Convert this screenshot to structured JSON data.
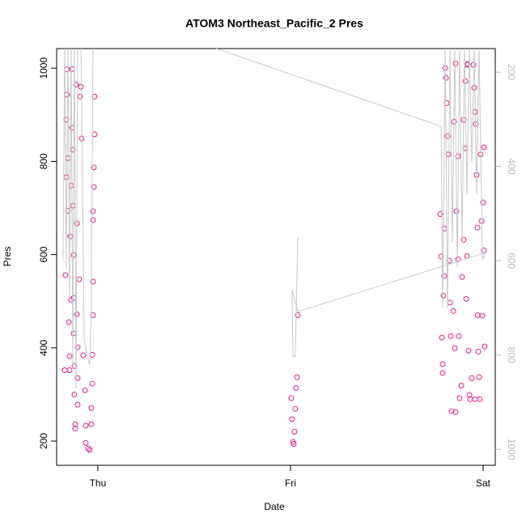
{
  "chart_data": {
    "type": "scatter",
    "title": "ATOM3 Northeast_Pacific_2 Pres",
    "x_label": "Date",
    "y_label": "Pres",
    "xlim": [
      -0.214,
      2.063
    ],
    "xticks": [
      {
        "value": 0,
        "label": "Thu"
      },
      {
        "value": 1,
        "label": "Fri"
      },
      {
        "value": 2,
        "label": "Sat"
      }
    ],
    "ylim": [
      148,
      1042
    ],
    "yticks": [
      200,
      400,
      600,
      800,
      1000
    ],
    "y2lim": [
      1034,
      150
    ],
    "y2ticks": [
      200,
      400,
      600,
      800,
      1000
    ],
    "series": [
      {
        "color": "#e0208c",
        "style": "points",
        "x": [
          -0.172,
          -0.168,
          -0.164,
          -0.164,
          -0.16,
          -0.16,
          -0.155,
          -0.155,
          -0.151,
          -0.147,
          -0.147,
          -0.143,
          -0.139,
          -0.139,
          -0.134,
          -0.134,
          -0.13,
          -0.13,
          -0.126,
          -0.126,
          -0.126,
          -0.122,
          -0.122,
          -0.118,
          -0.118,
          -0.113,
          -0.109,
          -0.109,
          -0.105,
          -0.105,
          -0.105,
          -0.097,
          -0.092,
          -0.088,
          -0.084,
          -0.076,
          -0.067,
          -0.063,
          -0.063,
          -0.05,
          -0.042,
          -0.034,
          -0.034,
          -0.029,
          -0.029,
          -0.025,
          -0.025,
          -0.025,
          -0.025,
          -0.021,
          -0.021,
          -0.017,
          -0.017,
          1.004,
          1.008,
          1.013,
          1.017,
          1.021,
          1.025,
          1.029,
          1.034,
          1.038,
          1.777,
          1.782,
          1.786,
          1.79,
          1.79,
          1.798,
          1.798,
          1.803,
          1.807,
          1.811,
          1.815,
          1.819,
          1.824,
          1.828,
          1.832,
          1.836,
          1.845,
          1.849,
          1.853,
          1.857,
          1.861,
          1.87,
          1.87,
          1.874,
          1.878,
          1.887,
          1.891,
          1.899,
          1.899,
          1.908,
          1.908,
          1.912,
          1.916,
          1.92,
          1.924,
          1.929,
          1.933,
          1.941,
          1.95,
          1.954,
          1.958,
          1.962,
          1.966,
          1.971,
          1.971,
          1.975,
          1.979,
          1.983,
          1.987,
          1.992,
          1.996,
          2.0,
          2.004,
          2.004,
          2.008,
          1.958,
          1.857,
          1.794,
          1.916
        ],
        "values": [
          352,
          556,
          766,
          889,
          943,
          997,
          807,
          694,
          455,
          382,
          352,
          639,
          503,
          748,
          872,
          998,
          825,
          705,
          599,
          507,
          431,
          361,
          300,
          236,
          227,
          965,
          667,
          472,
          401,
          335,
          278,
          547,
          939,
          960,
          849,
          384,
          309,
          233,
          196,
          184,
          181,
          271,
          236,
          385,
          323,
          470,
          542,
          674,
          693,
          745,
          787,
          858,
          939,
          292,
          247,
          198,
          194,
          220,
          269,
          314,
          337,
          470,
          687,
          596,
          422,
          365,
          346,
          656,
          554,
          1000,
          979,
          925,
          854,
          815,
          587,
          497,
          425,
          264,
          479,
          885,
          399,
          1010,
          693,
          811,
          590,
          425,
          292,
          319,
          552,
          889,
          632,
          972,
          828,
          505,
          597,
          1009,
          394,
          299,
          290,
          335,
          1007,
          958,
          906,
          880,
          771,
          658,
          470,
          392,
          337,
          290,
          815,
          672,
          469,
          712,
          830,
          609,
          403,
          290,
          262,
          512,
          1007
        ]
      },
      {
        "color": "#c8c8c8",
        "style": "line",
        "axis": "y2",
        "x": [
          -0.181,
          -0.172,
          -0.164,
          -0.155,
          -0.147,
          -0.139,
          -0.13,
          -0.122,
          -0.113,
          -0.105,
          -0.088,
          -0.071,
          -0.055,
          -0.042,
          -0.034,
          -0.025,
          -0.013,
          1.782,
          1.79,
          1.803,
          1.815,
          1.828,
          1.84,
          1.853,
          1.866,
          1.878,
          1.891,
          1.903,
          1.916,
          1.929,
          1.941,
          1.954,
          1.966,
          1.979,
          1.996,
          2.013,
          1.038,
          1.008,
          1.013,
          1.025,
          1.038
        ],
        "values": [
          597,
          140,
          614,
          140,
          682,
          140,
          820,
          140,
          871,
          140,
          140,
          768,
          803,
          820,
          700,
          140,
          61,
          315,
          700,
          150,
          700,
          150,
          562,
          150,
          614,
          150,
          562,
          150,
          459,
          150,
          391,
          150,
          459,
          150,
          597,
          583,
          708,
          662,
          803,
          803,
          550
        ]
      }
    ]
  }
}
